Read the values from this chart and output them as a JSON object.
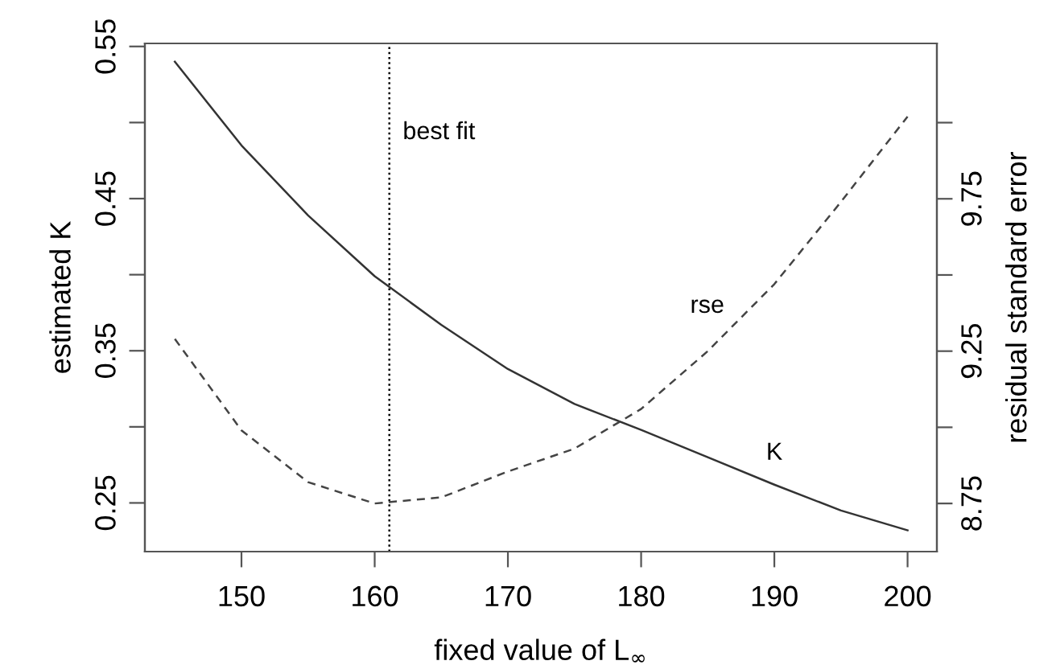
{
  "chart_data": {
    "type": "line",
    "xlabel": "fixed value of L$_{∞}$",
    "ylabel": "estimated K",
    "y2label": "residual standard error",
    "x": [
      145,
      150,
      155,
      160,
      165,
      170,
      175,
      180,
      185,
      190,
      195,
      200
    ],
    "series": [
      {
        "name": "K",
        "color": "#333333",
        "line_style": "solid",
        "values": [
          0.54,
          0.485,
          0.439,
          0.399,
          0.367,
          0.338,
          0.315,
          0.298,
          0.28,
          0.262,
          0.245,
          0.232
        ]
      },
      {
        "name": "rse",
        "color": "#444444",
        "line_style": "dashed",
        "axis": "y2",
        "values": [
          9.29,
          8.99,
          8.82,
          8.75,
          8.77,
          8.855,
          8.93,
          9.06,
          9.25,
          9.47,
          9.74,
          10.02
        ]
      }
    ],
    "xlim": [
      142.75,
      202.2
    ],
    "xticks": [
      150,
      160,
      170,
      180,
      190,
      200
    ],
    "ylim": [
      0.218,
      0.552
    ],
    "yticks": [
      0.25,
      {
        "value": 0.3,
        "label": null
      },
      0.35,
      {
        "value": 0.4,
        "label": null
      },
      0.45,
      {
        "value": 0.5,
        "label": null
      },
      0.55
    ],
    "y2lim": [
      8.592,
      10.26
    ],
    "y2ticks": [
      8.75,
      {
        "value": 9.0,
        "label": null
      },
      9.25,
      {
        "value": 9.5,
        "label": null
      },
      9.75,
      {
        "value": 10.0,
        "label": null
      }
    ],
    "ref_lines": [
      {
        "axis": "x",
        "value": 161.1,
        "label": "best fit",
        "color": "#000000",
        "line_style": "dotted"
      }
    ],
    "grid": false,
    "legend": false
  }
}
